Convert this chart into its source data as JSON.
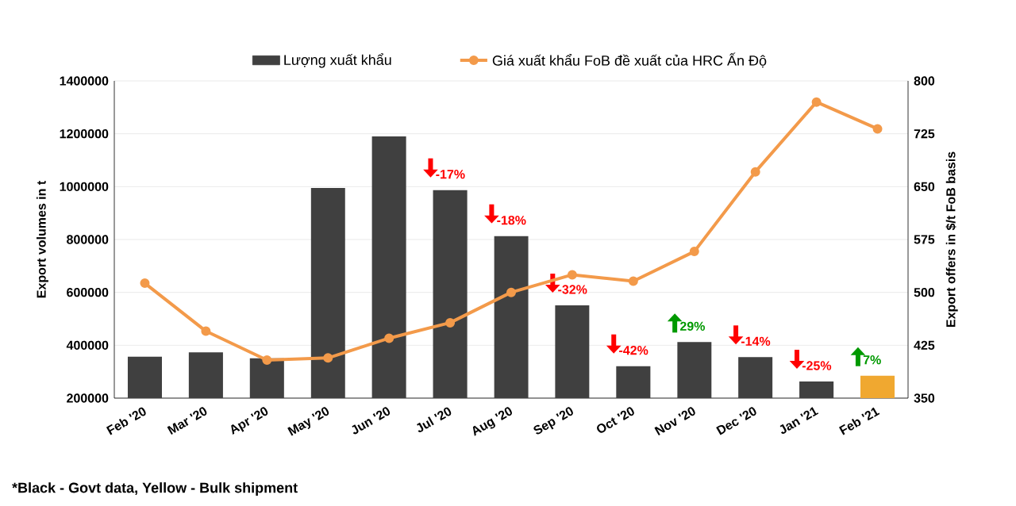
{
  "chart_data": {
    "type": "bar",
    "ylabel": "Export volumes in t",
    "y2label": "Export offers in $/t FoB basis",
    "categories": [
      "Feb '20",
      "Mar '20",
      "Apr '20",
      "May '20",
      "Jun '20",
      "Jul '20",
      "Aug '20",
      "Sep '20",
      "Oct '20",
      "Nov '20",
      "Dec '20",
      "Jan '21",
      "Feb '21"
    ],
    "series": [
      {
        "name": "Lượng xuất khẩu",
        "color": "#404040",
        "colors": [
          "#404040",
          "#404040",
          "#404040",
          "#404040",
          "#404040",
          "#404040",
          "#404040",
          "#404040",
          "#404040",
          "#404040",
          "#404040",
          "#404040",
          "#f0a830"
        ],
        "values": [
          357000,
          373000,
          351000,
          995000,
          1190000,
          987000,
          813000,
          551000,
          321000,
          412000,
          355000,
          263000,
          285000
        ]
      },
      {
        "name": "Giá xuất khẩu FoB đề xuất của HRC Ấn Độ",
        "type": "line",
        "axis": "y2",
        "color": "#f39a4a",
        "marker": "circle",
        "values": [
          513,
          445,
          404,
          407,
          435,
          457,
          500,
          525,
          516,
          558,
          671,
          770,
          732
        ]
      }
    ],
    "ylim": [
      200000,
      1400000
    ],
    "yticks": [
      200000,
      400000,
      600000,
      800000,
      1000000,
      1200000,
      1400000
    ],
    "y2lim": [
      350,
      800
    ],
    "y2ticks": [
      350,
      425,
      500,
      575,
      650,
      725,
      800
    ],
    "grid": "y",
    "legend": "top",
    "annotations": [
      {
        "text": "-17%",
        "x": "Jul '20",
        "y": 987000
      },
      {
        "text": "-18%",
        "x": "Aug '20",
        "y": 813000
      },
      {
        "text": "-32%",
        "x": "Sep '20",
        "y": 551000
      },
      {
        "text": "-42%",
        "x": "Oct '20",
        "y": 321000
      },
      {
        "text": "29%",
        "x": "Nov '20",
        "y": 412000
      },
      {
        "text": "-14%",
        "x": "Dec '20",
        "y": 355000
      },
      {
        "text": "-25%",
        "x": "Jan '21",
        "y": 263000
      },
      {
        "text": "7%",
        "x": "Feb '21",
        "y": 285000
      },
      "*Black - Govt data, Yellow - Bulk shipment"
    ]
  }
}
